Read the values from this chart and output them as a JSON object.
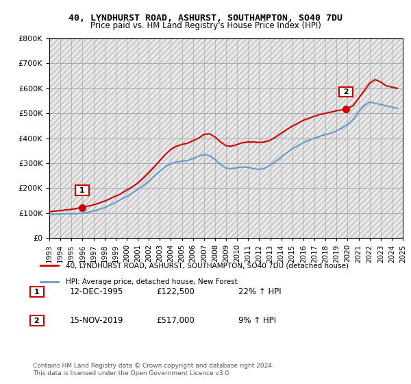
{
  "title1": "40, LYNDHURST ROAD, ASHURST, SOUTHAMPTON, SO40 7DU",
  "title2": "Price paid vs. HM Land Registry's House Price Index (HPI)",
  "ylabel": "",
  "bg_color": "#ffffff",
  "plot_bg_color": "#f0f0f0",
  "hatch_color": "#cccccc",
  "red_color": "#cc0000",
  "blue_color": "#6699cc",
  "marker1_year": 1995.95,
  "marker1_price": 122500,
  "marker2_year": 2019.88,
  "marker2_price": 517000,
  "legend_label1": "40, LYNDHURST ROAD, ASHURST, SOUTHAMPTON, SO40 7DU (detached house)",
  "legend_label2": "HPI: Average price, detached house, New Forest",
  "annotation1_date": "12-DEC-1995",
  "annotation1_price": "£122,500",
  "annotation1_hpi": "22% ↑ HPI",
  "annotation2_date": "15-NOV-2019",
  "annotation2_price": "£517,000",
  "annotation2_hpi": "9% ↑ HPI",
  "footer": "Contains HM Land Registry data © Crown copyright and database right 2024.\nThis data is licensed under the Open Government Licence v3.0.",
  "ylim": [
    0,
    800000
  ],
  "xlim_start": 1993,
  "xlim_end": 2025,
  "red_x": [
    1993.0,
    1993.5,
    1994.0,
    1994.5,
    1995.0,
    1995.95,
    1996.5,
    1997.0,
    1997.5,
    1998.0,
    1998.5,
    1999.0,
    1999.5,
    2000.0,
    2000.5,
    2001.0,
    2001.5,
    2002.0,
    2002.5,
    2003.0,
    2003.5,
    2004.0,
    2004.5,
    2005.0,
    2005.5,
    2006.0,
    2006.5,
    2007.0,
    2007.5,
    2008.0,
    2008.5,
    2009.0,
    2009.5,
    2010.0,
    2010.5,
    2011.0,
    2011.5,
    2012.0,
    2012.5,
    2013.0,
    2013.5,
    2014.0,
    2014.5,
    2015.0,
    2015.5,
    2016.0,
    2016.5,
    2017.0,
    2017.5,
    2018.0,
    2018.5,
    2019.0,
    2019.88,
    2020.5,
    2021.0,
    2021.5,
    2022.0,
    2022.5,
    2023.0,
    2023.5,
    2024.0,
    2024.5
  ],
  "red_y": [
    105000,
    108000,
    110000,
    113000,
    115000,
    122500,
    128000,
    133000,
    140000,
    148000,
    158000,
    168000,
    178000,
    192000,
    205000,
    220000,
    240000,
    262000,
    285000,
    310000,
    335000,
    355000,
    368000,
    375000,
    380000,
    390000,
    400000,
    415000,
    418000,
    405000,
    385000,
    370000,
    368000,
    375000,
    382000,
    385000,
    385000,
    383000,
    385000,
    392000,
    405000,
    420000,
    435000,
    448000,
    460000,
    472000,
    480000,
    488000,
    495000,
    500000,
    505000,
    510000,
    517000,
    530000,
    560000,
    590000,
    620000,
    635000,
    625000,
    610000,
    605000,
    600000
  ],
  "blue_x": [
    1993.0,
    1993.5,
    1994.0,
    1994.5,
    1995.0,
    1995.5,
    1996.0,
    1996.5,
    1997.0,
    1997.5,
    1998.0,
    1998.5,
    1999.0,
    1999.5,
    2000.0,
    2000.5,
    2001.0,
    2001.5,
    2002.0,
    2002.5,
    2003.0,
    2003.5,
    2004.0,
    2004.5,
    2005.0,
    2005.5,
    2006.0,
    2006.5,
    2007.0,
    2007.5,
    2008.0,
    2008.5,
    2009.0,
    2009.5,
    2010.0,
    2010.5,
    2011.0,
    2011.5,
    2012.0,
    2012.5,
    2013.0,
    2013.5,
    2014.0,
    2014.5,
    2015.0,
    2015.5,
    2016.0,
    2016.5,
    2017.0,
    2017.5,
    2018.0,
    2018.5,
    2019.0,
    2019.5,
    2020.0,
    2020.5,
    2021.0,
    2021.5,
    2022.0,
    2022.5,
    2023.0,
    2023.5,
    2024.0,
    2024.5
  ],
  "blue_y": [
    95000,
    96000,
    97000,
    98000,
    97000,
    98000,
    100000,
    103000,
    108000,
    115000,
    122000,
    132000,
    143000,
    155000,
    167000,
    180000,
    195000,
    210000,
    228000,
    248000,
    268000,
    285000,
    298000,
    305000,
    308000,
    310000,
    318000,
    328000,
    335000,
    330000,
    315000,
    295000,
    280000,
    278000,
    282000,
    285000,
    283000,
    278000,
    275000,
    280000,
    292000,
    308000,
    325000,
    342000,
    358000,
    370000,
    382000,
    392000,
    400000,
    408000,
    415000,
    420000,
    430000,
    440000,
    455000,
    475000,
    505000,
    530000,
    545000,
    540000,
    535000,
    530000,
    525000,
    520000
  ]
}
